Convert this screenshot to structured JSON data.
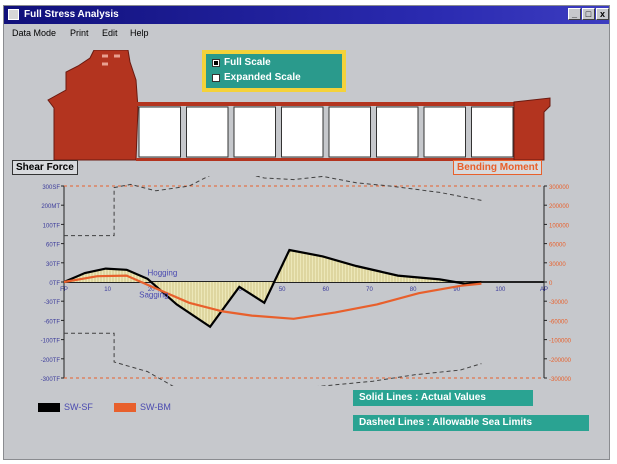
{
  "window": {
    "title": "Full Stress Analysis",
    "controls": {
      "minimize": "_",
      "maximize": "□",
      "close": "x"
    }
  },
  "menu": [
    "Data Mode",
    "Print",
    "Edit",
    "Help"
  ],
  "scale_options": {
    "selected": "Full Scale",
    "options": [
      "Full Scale",
      "Expanded Scale"
    ]
  },
  "ship": {
    "hull_color": "#b3341f",
    "tank_count": 8
  },
  "labels": {
    "shear_force": "Shear Force",
    "bending_moment": "Bending Moment",
    "hogging": "Hogging",
    "sagging": "Sagging"
  },
  "legend": [
    {
      "label": "SW-SF",
      "color": "#000000"
    },
    {
      "label": "SW-BM",
      "color": "#e8602c"
    }
  ],
  "notes": {
    "solid": "Solid Lines : Actual Values",
    "dashed": "Dashed Lines : Allowable Sea Limits"
  },
  "chart_data": {
    "type": "line",
    "left_axis_ticks": [
      "300SF",
      "200MT",
      "100TF",
      "60TF",
      "30TF",
      "0TF",
      "-30TF",
      "-60TF",
      "-100TF",
      "-200TF",
      "-300TF"
    ],
    "right_axis_ticks": [
      "300000",
      "200000",
      "100000",
      "60000",
      "30000",
      "0",
      "-30000",
      "-60000",
      "-100000",
      "-200000",
      "-300000"
    ],
    "x_ticks": [
      "FP",
      "10",
      "20",
      "30",
      "40",
      "50",
      "60",
      "70",
      "80",
      "90",
      "100",
      "AP"
    ],
    "y_range": [
      -300,
      300
    ],
    "x_range": [
      0,
      115
    ],
    "series": [
      {
        "name": "SW-SF",
        "style": "solid",
        "color": "#000000",
        "points": [
          [
            0,
            0
          ],
          [
            5,
            28
          ],
          [
            10,
            42
          ],
          [
            15,
            38
          ],
          [
            20,
            10
          ],
          [
            27,
            -70
          ],
          [
            35,
            -140
          ],
          [
            42,
            -15
          ],
          [
            48,
            -65
          ],
          [
            54,
            100
          ],
          [
            62,
            80
          ],
          [
            70,
            50
          ],
          [
            80,
            20
          ],
          [
            90,
            8
          ],
          [
            96,
            -5
          ],
          [
            100,
            0
          ]
        ]
      },
      {
        "name": "SW-BM",
        "style": "solid",
        "color": "#e8602c",
        "points": [
          [
            0,
            0
          ],
          [
            8,
            18
          ],
          [
            15,
            20
          ],
          [
            22,
            -20
          ],
          [
            30,
            -65
          ],
          [
            38,
            -92
          ],
          [
            45,
            -105
          ],
          [
            55,
            -115
          ],
          [
            65,
            -95
          ],
          [
            75,
            -70
          ],
          [
            85,
            -35
          ],
          [
            95,
            -12
          ],
          [
            100,
            -5
          ]
        ]
      },
      {
        "name": "Allowable limit (upper)",
        "style": "dashed",
        "color": "#404040",
        "points": [
          [
            0,
            145
          ],
          [
            12,
            145
          ],
          [
            12,
            295
          ],
          [
            16,
            305
          ],
          [
            22,
            285
          ],
          [
            30,
            300
          ],
          [
            36,
            340
          ],
          [
            42,
            345
          ],
          [
            48,
            325
          ],
          [
            55,
            320
          ],
          [
            62,
            330
          ],
          [
            70,
            310
          ],
          [
            78,
            300
          ],
          [
            90,
            280
          ],
          [
            100,
            255
          ]
        ]
      },
      {
        "name": "Allowable limit (lower)",
        "style": "dashed",
        "color": "#404040",
        "points": [
          [
            0,
            -160
          ],
          [
            12,
            -160
          ],
          [
            12,
            -250
          ],
          [
            20,
            -280
          ],
          [
            28,
            -340
          ],
          [
            35,
            -355
          ],
          [
            42,
            -360
          ],
          [
            50,
            -350
          ],
          [
            58,
            -330
          ],
          [
            66,
            -320
          ],
          [
            74,
            -310
          ],
          [
            84,
            -290
          ],
          [
            95,
            -275
          ],
          [
            100,
            -255
          ]
        ]
      }
    ]
  }
}
